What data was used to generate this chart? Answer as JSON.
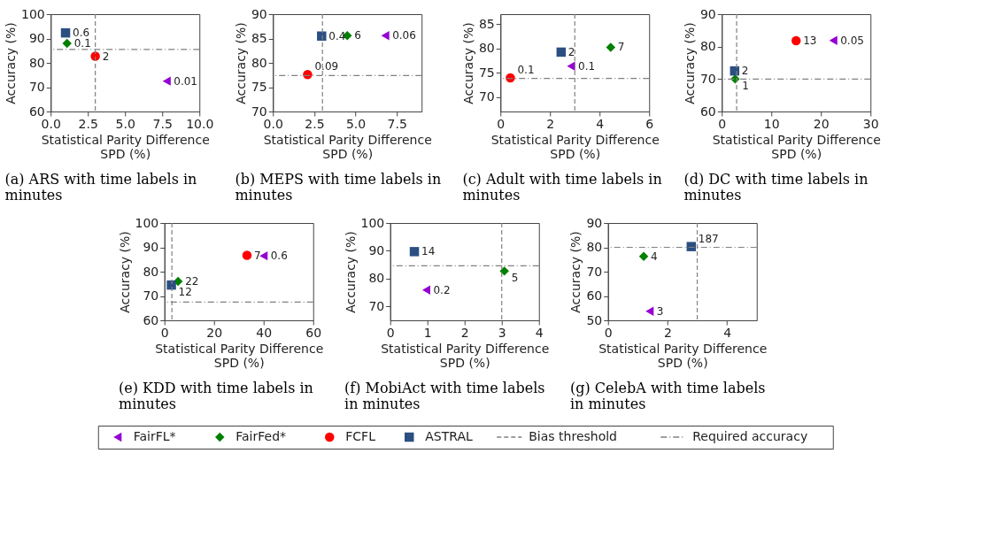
{
  "chart_data": [
    {
      "type": "scatter",
      "title": "(a) ARS with time labels in minutes",
      "xlabel": "Statistical Parity Difference\nSPD (%)",
      "ylabel": "Accuracy (%)",
      "xlim": [
        0,
        10
      ],
      "xticks": [
        {
          "value": 0,
          "label": "0.0"
        },
        {
          "value": 2.5,
          "label": "2.5"
        },
        {
          "value": 5,
          "label": "5.0"
        },
        {
          "value": 7.5,
          "label": "7.5"
        },
        {
          "value": 10,
          "label": "10.0"
        }
      ],
      "ylim": [
        60,
        100
      ],
      "yticks": [
        60,
        70,
        80,
        90,
        100
      ],
      "grid": false,
      "legend": "bottom",
      "series": [
        {
          "name": "FairFL*",
          "color": "#9400d3",
          "marker": "triangle",
          "x": [
            7.8
          ],
          "values": [
            72.5
          ]
        },
        {
          "name": "FairFed*",
          "color": "#008000",
          "marker": "diamond",
          "x": [
            1.1
          ],
          "values": [
            88
          ]
        },
        {
          "name": "FCFL",
          "color": "#ff0000",
          "marker": "circle",
          "x": [
            3.0
          ],
          "values": [
            82.7
          ]
        },
        {
          "name": "ASTRAL",
          "color": "#2b4f81",
          "marker": "square",
          "x": [
            1.0
          ],
          "values": [
            92.3
          ]
        }
      ],
      "annotations": [
        {
          "text": "0.01",
          "x": 7.8,
          "y": 72.5
        },
        {
          "text": "0.1",
          "x": 1.1,
          "y": 88
        },
        {
          "text": "2",
          "x": 3.0,
          "y": 82.7
        },
        {
          "text": "0.6",
          "x": 1.0,
          "y": 92.3
        }
      ],
      "ref_lines": [
        {
          "axis": "x",
          "value": 3,
          "label": "Bias threshold",
          "color": "#808080",
          "line_style": "dashed"
        },
        {
          "axis": "y",
          "value": 85.5,
          "label": "Required accuracy",
          "color": "#808080",
          "line_style": "dashdot"
        }
      ]
    },
    {
      "type": "scatter",
      "title": "(b) MEPS with time labels in minutes",
      "xlabel": "Statistical Parity Difference\nSPD (%)",
      "ylabel": "Accuracy (%)",
      "xlim": [
        0,
        9
      ],
      "xticks": [
        {
          "value": 0,
          "label": "0.0"
        },
        {
          "value": 2.5,
          "label": "2.5"
        },
        {
          "value": 5,
          "label": "5.0"
        },
        {
          "value": 7.5,
          "label": "7.5"
        }
      ],
      "ylim": [
        70,
        90
      ],
      "yticks": [
        70,
        75,
        80,
        85,
        90
      ],
      "grid": false,
      "series": [
        {
          "color": "#9400d3",
          "marker": "triangle",
          "x": [
            6.8
          ],
          "values": [
            85.6
          ]
        },
        {
          "color": "#008000",
          "marker": "diamond",
          "x": [
            4.5
          ],
          "values": [
            85.6
          ]
        },
        {
          "color": "#ff0000",
          "marker": "circle",
          "x": [
            2.1
          ],
          "values": [
            77.6
          ]
        },
        {
          "color": "#2b4f81",
          "marker": "square",
          "x": [
            2.95
          ],
          "values": [
            85.5
          ]
        }
      ],
      "annotations": [
        {
          "text": "0.06",
          "x": 6.8,
          "y": 85.6
        },
        {
          "text": "6",
          "x": 4.5,
          "y": 85.6
        },
        {
          "text": "0.09",
          "x": 2.1,
          "y": 77.6
        },
        {
          "text": "0.4",
          "x": 2.95,
          "y": 85.5
        }
      ],
      "ref_lines": [
        {
          "axis": "x",
          "value": 3,
          "color": "#808080",
          "line_style": "dashed"
        },
        {
          "axis": "y",
          "value": 77.4,
          "color": "#808080",
          "line_style": "dashdot"
        }
      ]
    },
    {
      "type": "scatter",
      "title": "(c) Adult with time labels in minutes",
      "xlabel": "Statistical Parity Difference\nSPD (%)",
      "ylabel": "Accuracy (%)",
      "xlim": [
        0,
        6
      ],
      "xticks": [
        0,
        2,
        4,
        6
      ],
      "ylim": [
        67,
        87
      ],
      "yticks": [
        70,
        75,
        80,
        85
      ],
      "grid": false,
      "series": [
        {
          "color": "#9400d3",
          "marker": "triangle",
          "x": [
            2.85
          ],
          "values": [
            76.3
          ]
        },
        {
          "color": "#008000",
          "marker": "diamond",
          "x": [
            4.45
          ],
          "values": [
            80.2
          ]
        },
        {
          "color": "#ff0000",
          "marker": "circle",
          "x": [
            0.4
          ],
          "values": [
            73.9
          ]
        },
        {
          "color": "#2b4f81",
          "marker": "square",
          "x": [
            2.45
          ],
          "values": [
            79.2
          ]
        }
      ],
      "annotations": [
        {
          "text": "0.1",
          "x": 2.85,
          "y": 76.3
        },
        {
          "text": "7",
          "x": 4.45,
          "y": 80.2
        },
        {
          "text": "0.1",
          "x": 0.4,
          "y": 73.9
        },
        {
          "text": "2",
          "x": 2.45,
          "y": 79.2
        }
      ],
      "ref_lines": [
        {
          "axis": "x",
          "value": 3,
          "color": "#808080",
          "line_style": "dashed"
        },
        {
          "axis": "y",
          "value": 73.8,
          "color": "#808080",
          "line_style": "dashdot"
        }
      ]
    },
    {
      "type": "scatter",
      "title": "(d) DC with time labels in minutes",
      "xlabel": "Statistical Parity Difference\nSPD (%)",
      "ylabel": "Accuracy (%)",
      "xlim": [
        0,
        30
      ],
      "xticks": [
        0,
        10,
        20,
        30
      ],
      "ylim": [
        60,
        90
      ],
      "yticks": [
        60,
        70,
        80,
        90
      ],
      "grid": false,
      "series": [
        {
          "color": "#9400d3",
          "marker": "triangle",
          "x": [
            22.5
          ],
          "values": [
            81.9
          ]
        },
        {
          "color": "#008000",
          "marker": "diamond",
          "x": [
            2.7
          ],
          "values": [
            70
          ]
        },
        {
          "color": "#ff0000",
          "marker": "circle",
          "x": [
            15
          ],
          "values": [
            81.8
          ]
        },
        {
          "color": "#2b4f81",
          "marker": "square",
          "x": [
            2.6
          ],
          "values": [
            72.5
          ]
        }
      ],
      "annotations": [
        {
          "text": "0.05",
          "x": 22.5,
          "y": 81.9
        },
        {
          "text": "1",
          "x": 2.7,
          "y": 70
        },
        {
          "text": "13",
          "x": 15,
          "y": 81.8
        },
        {
          "text": "2",
          "x": 2.6,
          "y": 72.5
        }
      ],
      "ref_lines": [
        {
          "axis": "x",
          "value": 3,
          "color": "#808080",
          "line_style": "dashed"
        },
        {
          "axis": "y",
          "value": 70,
          "color": "#808080",
          "line_style": "dashdot"
        }
      ]
    },
    {
      "type": "scatter",
      "title": "(e) KDD with time labels in minutes",
      "xlabel": "Statistical Parity Difference\nSPD (%)",
      "ylabel": "Accuracy (%)",
      "xlim": [
        0,
        60
      ],
      "xticks": [
        0,
        20,
        40,
        60
      ],
      "ylim": [
        60,
        100
      ],
      "yticks": [
        60,
        70,
        80,
        90,
        100
      ],
      "grid": false,
      "series": [
        {
          "color": "#9400d3",
          "marker": "triangle",
          "x": [
            40
          ],
          "values": [
            86.5
          ]
        },
        {
          "color": "#008000",
          "marker": "diamond",
          "x": [
            5.5
          ],
          "values": [
            76
          ]
        },
        {
          "color": "#ff0000",
          "marker": "circle",
          "x": [
            33.3
          ],
          "values": [
            86.7
          ]
        },
        {
          "color": "#2b4f81",
          "marker": "square",
          "x": [
            2.8
          ],
          "values": [
            74.5
          ]
        }
      ],
      "annotations": [
        {
          "text": "0.6",
          "x": 40,
          "y": 86.5
        },
        {
          "text": "22",
          "x": 5.5,
          "y": 76
        },
        {
          "text": "7",
          "x": 33.3,
          "y": 86.7
        },
        {
          "text": "12",
          "x": 2.8,
          "y": 74.5
        }
      ],
      "ref_lines": [
        {
          "axis": "x",
          "value": 3,
          "color": "#808080",
          "line_style": "dashed"
        },
        {
          "axis": "y",
          "value": 67.5,
          "color": "#808080",
          "line_style": "dashdot"
        }
      ]
    },
    {
      "type": "scatter",
      "title": "(f) MobiAct with time labels in minutes",
      "xlabel": "Statistical Parity Difference\nSPD (%)",
      "ylabel": "Accuracy (%)",
      "xlim": [
        0,
        4
      ],
      "xticks": [
        0,
        1,
        2,
        3,
        4
      ],
      "ylim": [
        65,
        100
      ],
      "yticks": [
        70,
        80,
        90,
        100
      ],
      "grid": false,
      "series": [
        {
          "color": "#9400d3",
          "marker": "triangle",
          "x": [
            0.97
          ],
          "values": [
            75.9
          ]
        },
        {
          "color": "#008000",
          "marker": "diamond",
          "x": [
            3.07
          ],
          "values": [
            82.7
          ]
        },
        {
          "color": "#2b4f81",
          "marker": "square",
          "x": [
            0.65
          ],
          "values": [
            89.7
          ]
        }
      ],
      "annotations": [
        {
          "text": "0.2",
          "x": 0.97,
          "y": 75.9
        },
        {
          "text": "5",
          "x": 3.07,
          "y": 82.7
        },
        {
          "text": "14",
          "x": 0.65,
          "y": 89.7
        }
      ],
      "ref_lines": [
        {
          "axis": "x",
          "value": 3,
          "color": "#808080",
          "line_style": "dashed"
        },
        {
          "axis": "y",
          "value": 84.6,
          "color": "#808080",
          "line_style": "dashdot"
        }
      ]
    },
    {
      "type": "scatter",
      "title": "(g) CelebA with time labels in minutes",
      "xlabel": "Statistical Parity Difference\nSPD (%)",
      "ylabel": "Accuracy (%)",
      "xlim": [
        0,
        5
      ],
      "xticks": [
        0,
        2,
        4
      ],
      "ylim": [
        50,
        90
      ],
      "yticks": [
        50,
        60,
        70,
        80,
        90
      ],
      "grid": false,
      "series": [
        {
          "color": "#9400d3",
          "marker": "triangle",
          "x": [
            1.4
          ],
          "values": [
            53.7
          ]
        },
        {
          "color": "#008000",
          "marker": "diamond",
          "x": [
            1.2
          ],
          "values": [
            76.3
          ]
        },
        {
          "color": "#2b4f81",
          "marker": "square",
          "x": [
            2.8
          ],
          "values": [
            80.3
          ]
        }
      ],
      "annotations": [
        {
          "text": "3",
          "x": 1.4,
          "y": 53.7
        },
        {
          "text": "4",
          "x": 1.2,
          "y": 76.3
        },
        {
          "text": "187",
          "x": 2.8,
          "y": 80.3
        }
      ],
      "ref_lines": [
        {
          "axis": "x",
          "value": 3,
          "color": "#808080",
          "line_style": "dashed"
        },
        {
          "axis": "y",
          "value": 80,
          "color": "#808080",
          "line_style": "dashdot"
        }
      ]
    }
  ]
}
